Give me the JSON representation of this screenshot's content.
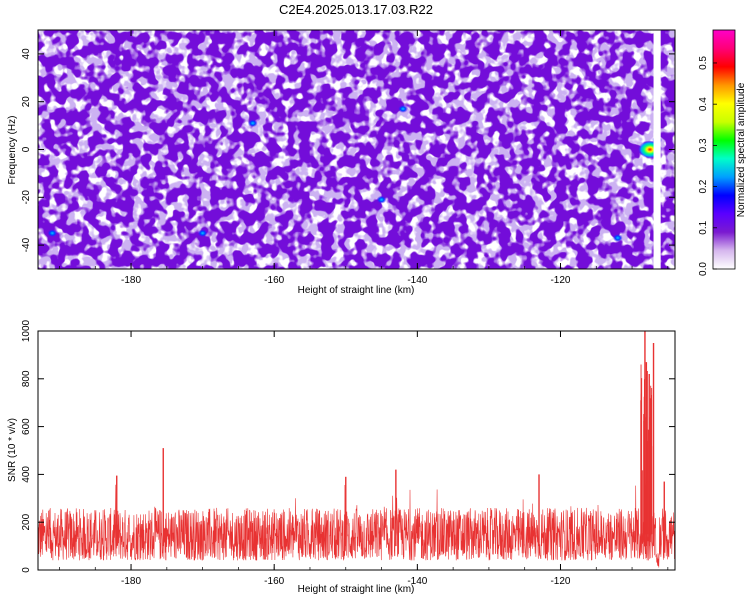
{
  "title": "C2E4.2025.013.17.03.R22",
  "chart_data": [
    {
      "type": "heatmap",
      "xlabel": "Height of straight line (km)",
      "ylabel": "Frequency (Hz)",
      "xlim": [
        -193,
        -104
      ],
      "ylim": [
        -50,
        50
      ],
      "xticks": [
        -180,
        -160,
        -140,
        -120
      ],
      "yticks": [
        40,
        20,
        0,
        -20,
        -40
      ],
      "colorbar": {
        "label": "Normalized spectral amplitude",
        "range": [
          0,
          0.58
        ],
        "ticks": [
          0.0,
          0.1,
          0.2,
          0.3,
          0.4,
          0.5
        ],
        "colors": [
          "#ffffff",
          "#d6b7ee",
          "#7a1ad0",
          "#5a00ff",
          "#0000ff",
          "#00a0ff",
          "#00ffc8",
          "#00ff00",
          "#c8ff00",
          "#ffff00",
          "#ff9600",
          "#ff0000",
          "#ff0078",
          "#ff00c8"
        ]
      },
      "background_level": 0.05,
      "hot_spots": [
        {
          "x": -107.5,
          "y": 0,
          "value": 0.5
        },
        {
          "x": -106.5,
          "y": 4,
          "value": 0.1
        },
        {
          "x": -191,
          "y": -35,
          "value": 0.08
        },
        {
          "x": -170,
          "y": -35,
          "value": 0.09
        },
        {
          "x": -163,
          "y": 11,
          "value": 0.08
        },
        {
          "x": -145,
          "y": -21,
          "value": 0.09
        },
        {
          "x": -142,
          "y": 17,
          "value": 0.08
        },
        {
          "x": -112,
          "y": -37,
          "value": 0.08
        }
      ],
      "gap_x": [
        -107,
        -106
      ]
    },
    {
      "type": "line",
      "xlabel": "Height of straight line (km)",
      "ylabel": "SNR (10 * v/v)",
      "xlim": [
        -193,
        -104
      ],
      "ylim": [
        0,
        1000
      ],
      "xticks": [
        -180,
        -160,
        -140,
        -120
      ],
      "yticks": [
        0,
        200,
        400,
        600,
        800,
        1000
      ],
      "color": "#e83232",
      "noise_band": [
        40,
        260
      ],
      "spikes": [
        {
          "x": -175.5,
          "y": 510
        },
        {
          "x": -143,
          "y": 420
        },
        {
          "x": -150,
          "y": 390
        },
        {
          "x": -182,
          "y": 395
        },
        {
          "x": -123,
          "y": 400
        },
        {
          "x": -108.2,
          "y": 1000
        },
        {
          "x": -108,
          "y": 870
        },
        {
          "x": -107,
          "y": 950
        },
        {
          "x": -107.6,
          "y": 820
        },
        {
          "x": -105.5,
          "y": 370
        }
      ]
    }
  ]
}
